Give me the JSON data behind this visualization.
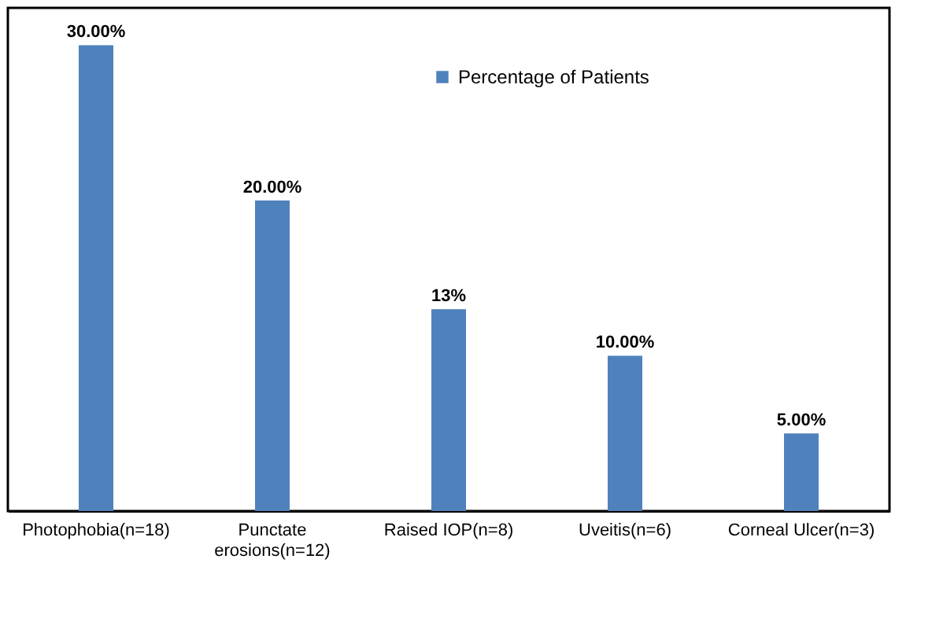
{
  "chart_data": {
    "type": "bar",
    "categories": [
      "Photophobia(n=18)",
      "Punctate\nerosions(n=12)",
      "Raised IOP(n=8)",
      "Uveitis(n=6)",
      "Corneal Ulcer(n=3)"
    ],
    "series": [
      {
        "name": "Percentage of Patients",
        "color": "#4f81bd",
        "values": [
          30,
          20,
          13,
          10,
          5
        ],
        "value_labels": [
          "30.00%",
          "20.00%",
          "13%",
          "10.00%",
          "5.00%"
        ]
      }
    ],
    "legend": "top",
    "grid": false
  }
}
